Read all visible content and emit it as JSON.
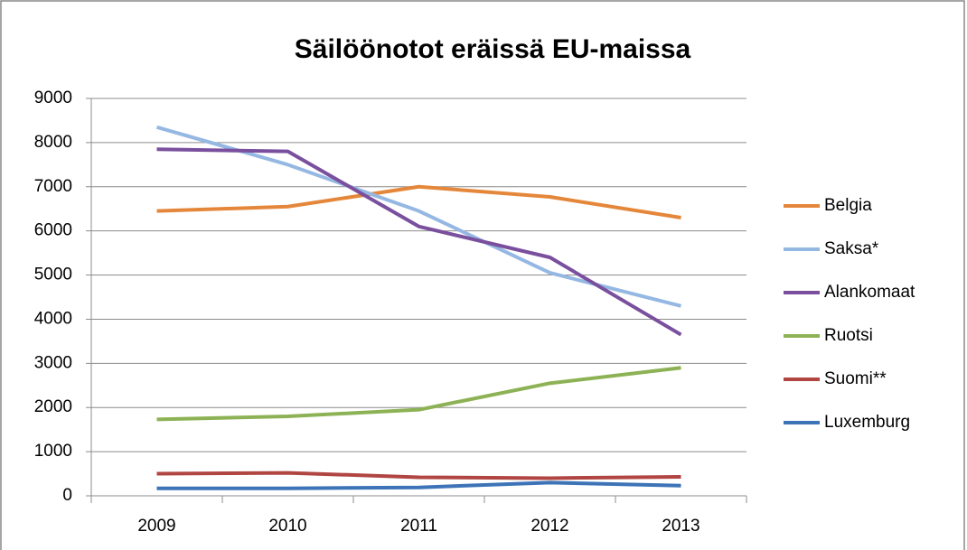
{
  "chart_data": {
    "type": "line",
    "title": "Säilöönotot eräissä EU-maissa",
    "categories": [
      "2009",
      "2010",
      "2011",
      "2012",
      "2013"
    ],
    "series": [
      {
        "name": "Belgia",
        "color": "#e5873a",
        "values": [
          6450,
          6550,
          7000,
          6770,
          6300
        ]
      },
      {
        "name": "Saksa*",
        "color": "#95b8e3",
        "values": [
          8350,
          7500,
          6450,
          5050,
          4300
        ]
      },
      {
        "name": "Alankomaat",
        "color": "#7a509e",
        "values": [
          7850,
          7800,
          6100,
          5400,
          3650
        ]
      },
      {
        "name": "Ruotsi",
        "color": "#8db255",
        "values": [
          1730,
          1800,
          1950,
          2550,
          2900
        ]
      },
      {
        "name": "Suomi**",
        "color": "#b04542",
        "values": [
          500,
          520,
          420,
          400,
          430
        ]
      },
      {
        "name": "Luxemburg",
        "color": "#3d73b7",
        "values": [
          170,
          170,
          190,
          300,
          230
        ]
      }
    ],
    "ylim": [
      0,
      9000
    ],
    "yticks": [
      0,
      1000,
      2000,
      3000,
      4000,
      5000,
      6000,
      7000,
      8000,
      9000
    ],
    "grid": true,
    "legend": "right"
  }
}
